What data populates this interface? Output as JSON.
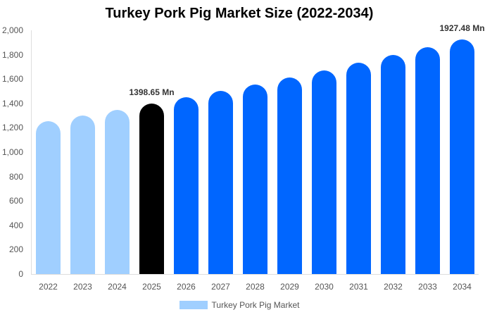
{
  "chart_data": {
    "type": "bar",
    "title": "Turkey Pork Pig Market Size (2022-2034)",
    "xlabel": "",
    "ylabel": "",
    "categories": [
      "2022",
      "2023",
      "2024",
      "2025",
      "2026",
      "2027",
      "2028",
      "2029",
      "2030",
      "2031",
      "2032",
      "2033",
      "2034"
    ],
    "series": [
      {
        "name": "Turkey Pork Pig Market",
        "values": [
          1256.7,
          1302.3,
          1349.6,
          1398.65,
          1449.4,
          1502.0,
          1556.6,
          1613.1,
          1671.6,
          1732.3,
          1795.2,
          1860.4,
          1927.48
        ]
      }
    ],
    "ylim": [
      0,
      2000
    ],
    "yticks": [
      0,
      200,
      400,
      600,
      800,
      1000,
      1200,
      1400,
      1600,
      1800,
      2000
    ],
    "ytick_labels": [
      "0",
      "200",
      "400",
      "600",
      "800",
      "1,000",
      "1,200",
      "1,400",
      "1,600",
      "1,800",
      "2,000"
    ],
    "annotations": [
      {
        "category": "2025",
        "text": "1398.65 Mn"
      },
      {
        "category": "2034",
        "text": "1927.48 Mn"
      }
    ],
    "grid": false,
    "legend_position": "bottom",
    "colors": {
      "historical": "#a0cfff",
      "base_year": "#000000",
      "forecast": "#0066ff"
    }
  },
  "legend": {
    "label": "Turkey Pork Pig Market",
    "color": "#a0cfff"
  }
}
